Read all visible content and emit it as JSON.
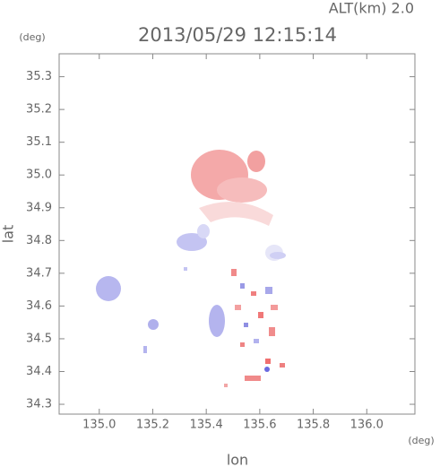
{
  "chart_data": {
    "type": "scatter",
    "title": "2013/05/29 12:15:14",
    "annotation": "ALT(km) 2.0",
    "x_unit": "(deg)",
    "y_unit": "(deg)",
    "x_label": "lon",
    "y_label": "lat",
    "xlim": [
      134.85,
      136.18
    ],
    "ylim": [
      34.27,
      35.37
    ],
    "xticks": [
      {
        "value": 135.0,
        "label": "135.0"
      },
      135.2,
      135.4,
      135.6,
      135.8,
      {
        "value": 136.0,
        "label": "136.0"
      }
    ],
    "yticks": [
      34.3,
      34.4,
      34.5,
      34.6,
      34.7,
      34.8,
      34.9,
      {
        "value": 35.0,
        "label": "35.0"
      },
      35.1,
      35.2,
      35.3
    ]
  }
}
